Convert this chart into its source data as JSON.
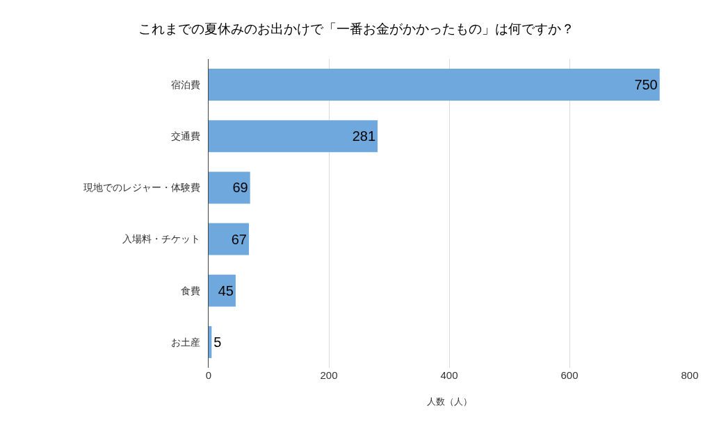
{
  "chart_data": {
    "type": "bar",
    "orientation": "horizontal",
    "title": "これまでの夏休みのお出かけで「一番お金がかかったもの」は何ですか？",
    "xlabel": "人数（人）",
    "categories": [
      "宿泊費",
      "交通費",
      "現地でのレジャー・体験費",
      "入場料・チケット",
      "食費",
      "お土産"
    ],
    "values": [
      750,
      281,
      69,
      67,
      45,
      5
    ],
    "color": "#6fa8dc",
    "xlim": [
      0,
      800
    ],
    "xticks": [
      0,
      200,
      400,
      600,
      800
    ],
    "grid": "x",
    "data_labels": true
  }
}
